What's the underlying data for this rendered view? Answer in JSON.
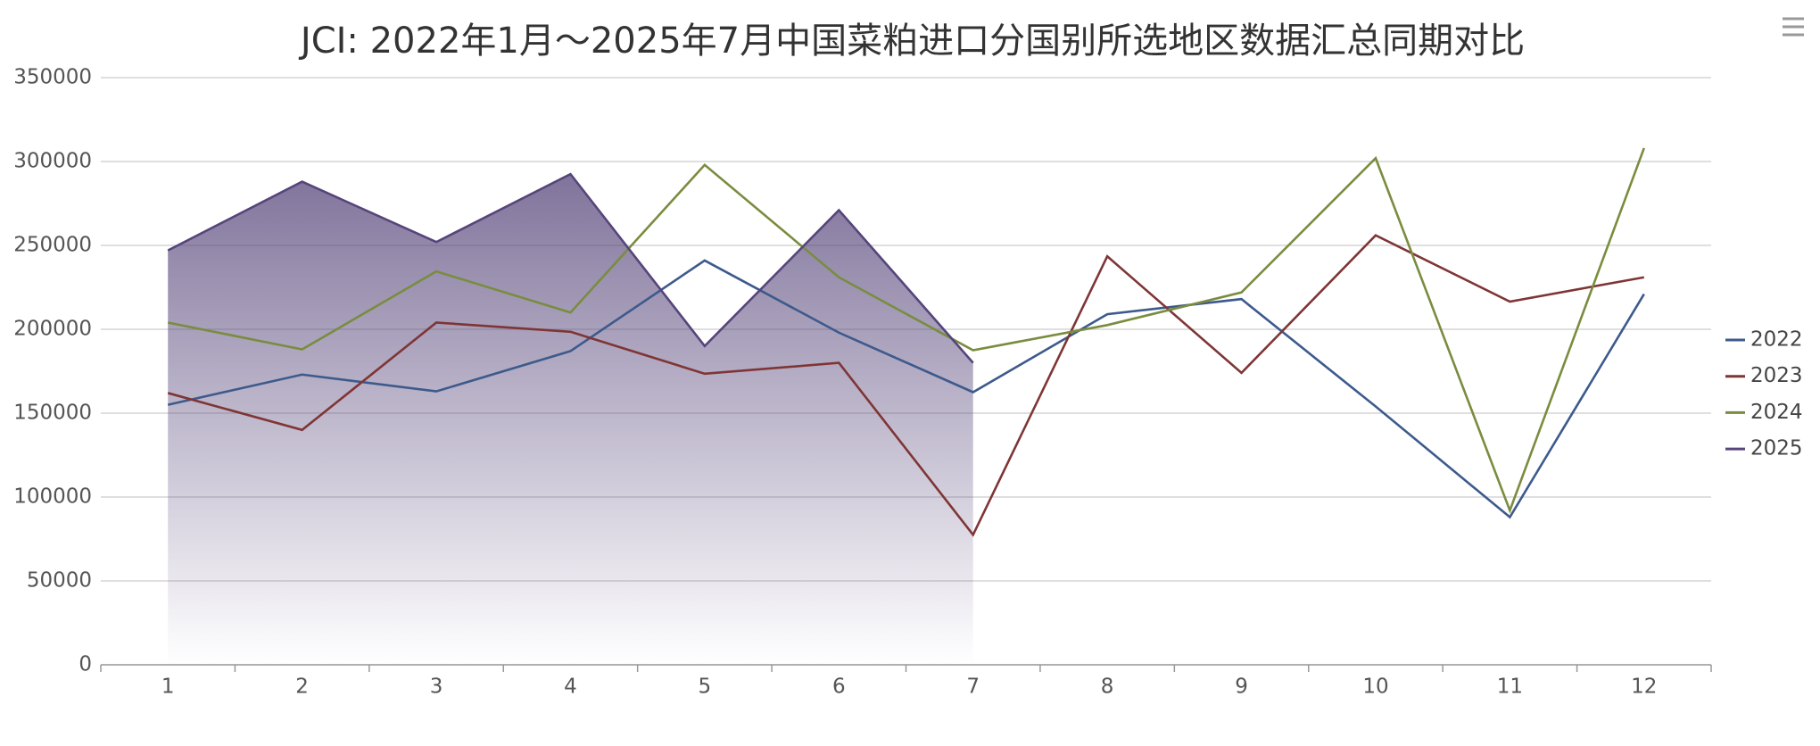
{
  "chart_data": {
    "type": "line",
    "title": "JCI: 2022年1月～2025年7月中国菜粕进口分国别所选地区数据汇总同期对比",
    "categories": [
      "1",
      "2",
      "3",
      "4",
      "5",
      "6",
      "7",
      "8",
      "9",
      "10",
      "11",
      "12"
    ],
    "series": [
      {
        "name": "2022",
        "color": "#3d5a8c",
        "values": [
          155000,
          173000,
          163000,
          187000,
          241000,
          198000,
          162500,
          209000,
          218000,
          154000,
          88000,
          221000
        ]
      },
      {
        "name": "2023",
        "color": "#7f3535",
        "values": [
          162000,
          140000,
          204000,
          198500,
          173500,
          180000,
          77500,
          243500,
          174000,
          256000,
          216500,
          231000
        ]
      },
      {
        "name": "2024",
        "color": "#7a8c3f",
        "values": [
          204000,
          188000,
          234500,
          210000,
          298000,
          231000,
          187500,
          202500,
          222000,
          302000,
          92000,
          308000
        ]
      },
      {
        "name": "2025",
        "color": "#56457a",
        "area": true,
        "values": [
          247000,
          288000,
          252000,
          292500,
          190000,
          271000,
          180000,
          null,
          null,
          null,
          null,
          null
        ]
      }
    ],
    "ylim": [
      0,
      350000
    ],
    "yticks": [
      0,
      50000,
      100000,
      150000,
      200000,
      250000,
      300000,
      350000
    ],
    "grid": true,
    "legend": "right"
  }
}
